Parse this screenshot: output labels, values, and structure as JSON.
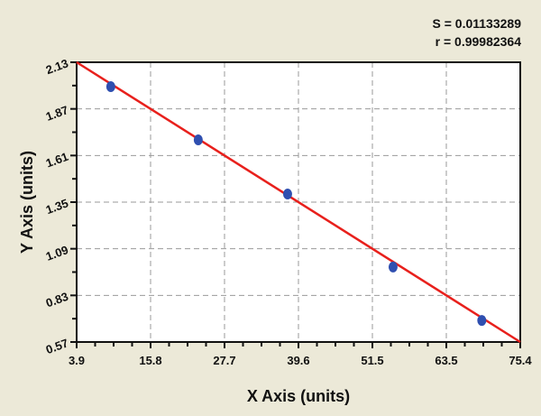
{
  "chart_data": {
    "type": "scatter",
    "xlabel": "X Axis (units)",
    "ylabel": "Y Axis (units)",
    "xlim": [
      3.9,
      75.4
    ],
    "ylim": [
      0.57,
      2.13
    ],
    "xticks": [
      "3.9",
      "15.8",
      "27.7",
      "39.6",
      "51.5",
      "63.5",
      "75.4"
    ],
    "yticks": [
      "0.57",
      "0.83",
      "1.09",
      "1.35",
      "1.61",
      "1.87",
      "2.13"
    ],
    "grid": true,
    "annotations": [
      "S = 0.01133289",
      "r = 0.99982364"
    ],
    "series": [
      {
        "x": [
          9.4,
          23.5,
          37.9,
          54.9,
          69.2
        ],
        "y": [
          1.994,
          1.697,
          1.395,
          0.988,
          0.69
        ],
        "color": "#2f4fb0"
      }
    ],
    "fit_line": {
      "x": [
        3.9,
        75.4
      ],
      "y": [
        2.13,
        0.57
      ],
      "color": "#e8201c"
    }
  }
}
